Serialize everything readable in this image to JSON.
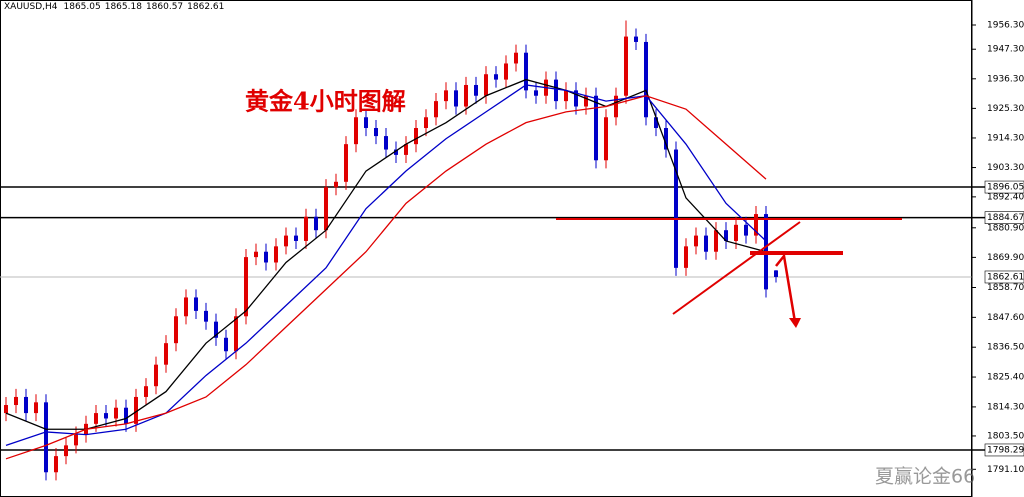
{
  "chart_data": {
    "type": "candlestick",
    "title": "黄金4小时图解",
    "symbol": "XAUUSD,H4",
    "header_ohlc": [
      1865.05,
      1865.18,
      1860.57,
      1862.61
    ],
    "watermark": "夏赢论金66",
    "up_color": "#e00000",
    "down_color": "#0000c8",
    "ylim": [
      1780.8,
      1965.6
    ],
    "yticks": [
      {
        "value": 1956.3,
        "label": "1956.30"
      },
      {
        "value": 1947.3,
        "label": "1947.30"
      },
      {
        "value": 1936.3,
        "label": "1936.30"
      },
      {
        "value": 1925.3,
        "label": "1925.30"
      },
      {
        "value": 1914.3,
        "label": "1914.30"
      },
      {
        "value": 1903.3,
        "label": "1903.30"
      },
      {
        "value": 1892.4,
        "label": "1892.40"
      },
      {
        "value": 1880.9,
        "label": "1880.90"
      },
      {
        "value": 1869.9,
        "label": "1869.90"
      },
      {
        "value": 1858.7,
        "label": "1858.70"
      },
      {
        "value": 1847.6,
        "label": "1847.60"
      },
      {
        "value": 1836.5,
        "label": "1836.50"
      },
      {
        "value": 1825.4,
        "label": "1825.40"
      },
      {
        "value": 1814.3,
        "label": "1814.30"
      },
      {
        "value": 1803.5,
        "label": "1803.50"
      },
      {
        "value": 1791.1,
        "label": "1791.10"
      }
    ],
    "levels": [
      1896.05,
      1884.67,
      1798.29
    ],
    "price_line": 1862.61,
    "open": [
      1812,
      1815,
      1818,
      1812,
      1816,
      1790,
      1796,
      1800,
      1804,
      1808,
      1812,
      1810,
      1814,
      1808,
      1818,
      1822,
      1830,
      1838,
      1848,
      1855,
      1850,
      1846,
      1840,
      1835,
      1848,
      1870,
      1872,
      1868,
      1874,
      1878,
      1876,
      1885,
      1880,
      1896,
      1898,
      1912,
      1922,
      1918,
      1915,
      1910,
      1908,
      1912,
      1918,
      1922,
      1928,
      1932,
      1926,
      1934,
      1930,
      1938,
      1936,
      1942,
      1946,
      1932,
      1930,
      1936,
      1928,
      1932,
      1926,
      1930,
      1906,
      1922,
      1930,
      1952,
      1950,
      1922,
      1918,
      1910,
      1866,
      1874,
      1878,
      1872,
      1880,
      1876,
      1882,
      1878,
      1886,
      1865.05
    ],
    "high": [
      1818,
      1821,
      1821,
      1819,
      1819,
      1799,
      1803,
      1807,
      1811,
      1815,
      1815,
      1817,
      1817,
      1821,
      1825,
      1833,
      1841,
      1851,
      1858,
      1858,
      1853,
      1849,
      1843,
      1851,
      1873,
      1875,
      1875,
      1877,
      1881,
      1881,
      1888,
      1888,
      1899,
      1901,
      1915,
      1925,
      1925,
      1921,
      1918,
      1913,
      1915,
      1921,
      1925,
      1931,
      1935,
      1935,
      1937,
      1937,
      1941,
      1941,
      1945,
      1949,
      1949,
      1935,
      1939,
      1939,
      1935,
      1935,
      1933,
      1933,
      1925,
      1933,
      1958,
      1955,
      1953,
      1925,
      1921,
      1913,
      1877,
      1881,
      1881,
      1883,
      1883,
      1885,
      1885,
      1889,
      1889,
      1865.18
    ],
    "low": [
      1809,
      1812,
      1809,
      1809,
      1787,
      1787,
      1793,
      1797,
      1801,
      1805,
      1807,
      1807,
      1805,
      1805,
      1815,
      1819,
      1827,
      1835,
      1845,
      1847,
      1843,
      1837,
      1832,
      1832,
      1845,
      1867,
      1865,
      1865,
      1871,
      1873,
      1873,
      1877,
      1877,
      1893,
      1895,
      1909,
      1915,
      1912,
      1907,
      1905,
      1905,
      1909,
      1915,
      1919,
      1925,
      1923,
      1923,
      1927,
      1927,
      1933,
      1933,
      1939,
      1929,
      1927,
      1927,
      1925,
      1925,
      1923,
      1923,
      1903,
      1903,
      1919,
      1927,
      1947,
      1919,
      1915,
      1907,
      1863,
      1863,
      1871,
      1869,
      1869,
      1873,
      1873,
      1875,
      1875,
      1855,
      1860.57
    ],
    "close": [
      1815,
      1818,
      1812,
      1816,
      1790,
      1796,
      1800,
      1804,
      1808,
      1812,
      1810,
      1814,
      1808,
      1818,
      1822,
      1830,
      1838,
      1848,
      1855,
      1850,
      1846,
      1840,
      1835,
      1848,
      1870,
      1872,
      1868,
      1874,
      1878,
      1876,
      1885,
      1880,
      1896,
      1898,
      1912,
      1922,
      1918,
      1915,
      1910,
      1908,
      1912,
      1918,
      1922,
      1928,
      1932,
      1926,
      1934,
      1930,
      1938,
      1936,
      1942,
      1946,
      1932,
      1930,
      1936,
      1928,
      1932,
      1926,
      1930,
      1906,
      1922,
      1930,
      1952,
      1950,
      1922,
      1918,
      1910,
      1866,
      1874,
      1878,
      1872,
      1880,
      1876,
      1882,
      1878,
      1886,
      1858,
      1862.61
    ],
    "series": [
      {
        "color": "#000000",
        "values": [
          1812,
          1806,
          1806,
          1810,
          1820,
          1838,
          1850,
          1868,
          1880,
          1902,
          1912,
          1920,
          1930,
          1936,
          1932,
          1926,
          1932,
          1892,
          1876,
          1872
        ]
      },
      {
        "color": "#0000c8",
        "values": [
          1800,
          1805,
          1804,
          1806,
          1812,
          1826,
          1838,
          1852,
          1866,
          1888,
          1902,
          1914,
          1924,
          1934,
          1932,
          1928,
          1930,
          1912,
          1890,
          1876
        ]
      },
      {
        "color": "#e00000",
        "values": [
          1795,
          1800,
          1806,
          1808,
          1812,
          1818,
          1830,
          1844,
          1858,
          1872,
          1890,
          1902,
          1912,
          1920,
          1924,
          1926,
          1930,
          1925,
          1912,
          1899
        ]
      }
    ]
  }
}
